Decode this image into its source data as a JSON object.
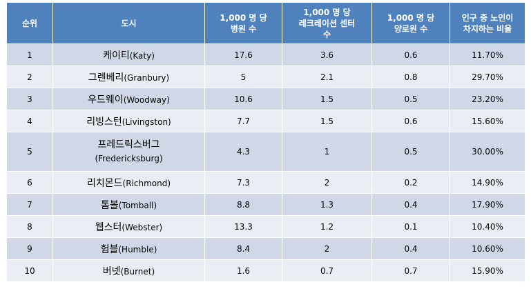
{
  "columns": [
    "순위",
    "도시",
    "1,000 명 당\n병원 수",
    "1,000 명 당\n레크레이션 센터\n수",
    "1,000 명 당\n양로원 수",
    "인구 중 노인이\n차지하는 비율"
  ],
  "rows": [
    {
      "rank": "1",
      "city_kr": "케이티",
      "city_en": "(Katy)",
      "hospitals": "17.6",
      "recreation": "3.6",
      "nursing": "0.6",
      "elderly": "11.70%"
    },
    {
      "rank": "2",
      "city_kr": "그렌베리",
      "city_en": "(Granbury)",
      "hospitals": "5",
      "recreation": "2.1",
      "nursing": "0.8",
      "elderly": "29.70%"
    },
    {
      "rank": "3",
      "city_kr": "우드웨이",
      "city_en": "(Woodway)",
      "hospitals": "10.6",
      "recreation": "1.5",
      "nursing": "0.5",
      "elderly": "23.20%"
    },
    {
      "rank": "4",
      "city_kr": "리빙스턴",
      "city_en": "(Livingston)",
      "hospitals": "7.7",
      "recreation": "1.5",
      "nursing": "0.6",
      "elderly": "15.60%"
    },
    {
      "rank": "5",
      "city_kr": "프레드릭스버그",
      "city_en": "(Fredericksburg)",
      "hospitals": "4.3",
      "recreation": "1",
      "nursing": "0.5",
      "elderly": "30.00%"
    },
    {
      "rank": "6",
      "city_kr": "리치몬드",
      "city_en": "(Richmond)",
      "hospitals": "7.3",
      "recreation": "2",
      "nursing": "0.2",
      "elderly": "14.90%"
    },
    {
      "rank": "7",
      "city_kr": "톰볼",
      "city_en": "(Tomball)",
      "hospitals": "8.8",
      "recreation": "1.3",
      "nursing": "0.4",
      "elderly": "17.90%"
    },
    {
      "rank": "8",
      "city_kr": "웹스터",
      "city_en": "(Webster)",
      "hospitals": "13.3",
      "recreation": "1.2",
      "nursing": "0.1",
      "elderly": "10.40%"
    },
    {
      "rank": "9",
      "city_kr": "험블",
      "city_en": "(Humble)",
      "hospitals": "8.4",
      "recreation": "2",
      "nursing": "0.4",
      "elderly": "10.60%"
    },
    {
      "rank": "10",
      "city_kr": "버넷",
      "city_en": "(Burnet)",
      "hospitals": "1.6",
      "recreation": "0.7",
      "nursing": "0.7",
      "elderly": "15.90%"
    }
  ],
  "colors": {
    "header": "#4f81bd",
    "row_odd": "#d0d8e8",
    "row_even": "#e9edf4"
  }
}
